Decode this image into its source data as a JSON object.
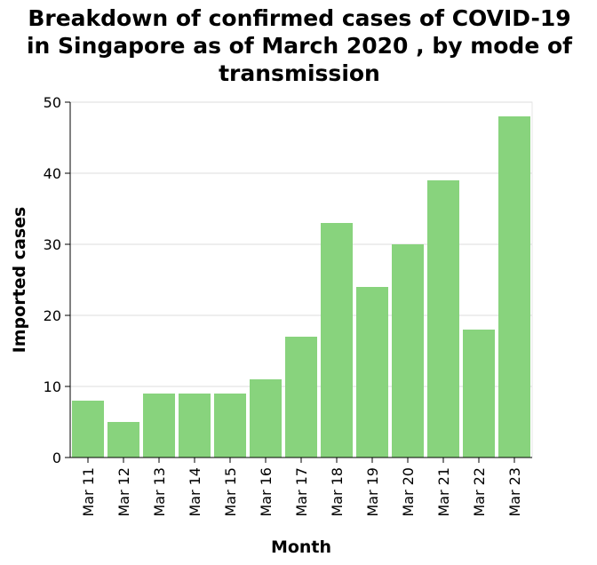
{
  "chart_data": {
    "type": "bar",
    "title_lines": [
      "Breakdown of confirmed cases of COVID-19",
      "in Singapore as of March 2020 , by mode of",
      "transmission"
    ],
    "xlabel": "Month",
    "ylabel": "Imported cases",
    "categories": [
      "Mar 11",
      "Mar 12",
      "Mar 13",
      "Mar 14",
      "Mar 15",
      "Mar 16",
      "Mar 17",
      "Mar 18",
      "Mar 19",
      "Mar 20",
      "Mar 21",
      "Mar 22",
      "Mar 23"
    ],
    "values": [
      8,
      5,
      9,
      9,
      9,
      11,
      17,
      33,
      24,
      30,
      39,
      18,
      48
    ],
    "ylim": [
      0,
      50
    ],
    "yticks": [
      0,
      10,
      20,
      30,
      40,
      50
    ],
    "grid": true,
    "bar_color": "#88d37d",
    "legend": "none"
  }
}
